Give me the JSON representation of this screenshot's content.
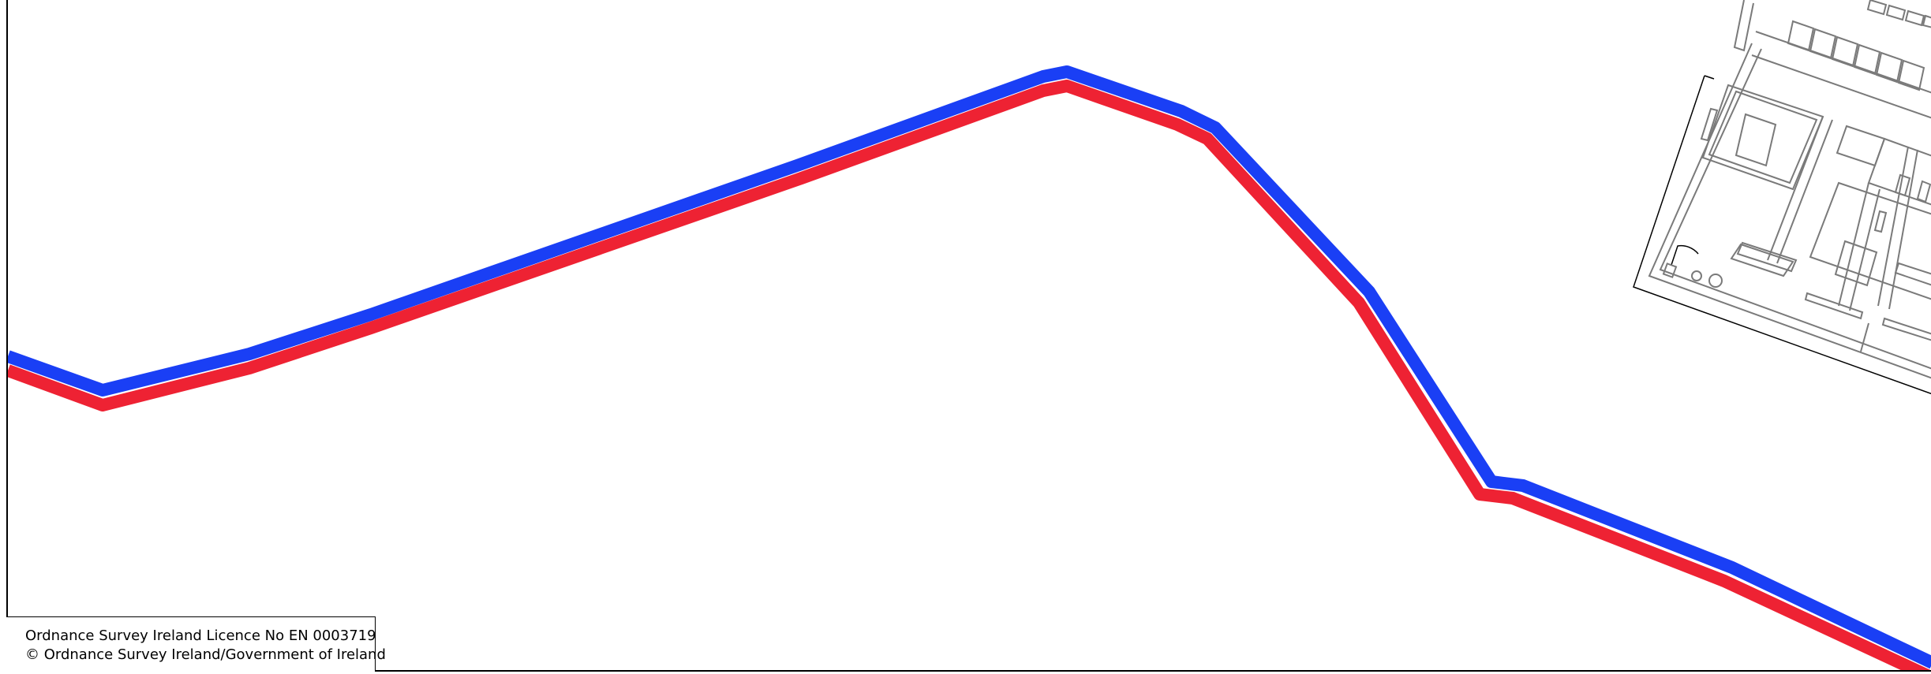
{
  "licence": {
    "line1": "Ordnance Survey Ireland Licence No EN 0003719",
    "line2": "© Ordnance Survey Ireland/Government of Ireland"
  },
  "colors": {
    "boundary_outer": "#1a3ff5",
    "boundary_inner": "#ee2233",
    "building_lines": "#7a7a7a",
    "frame": "#000000"
  }
}
